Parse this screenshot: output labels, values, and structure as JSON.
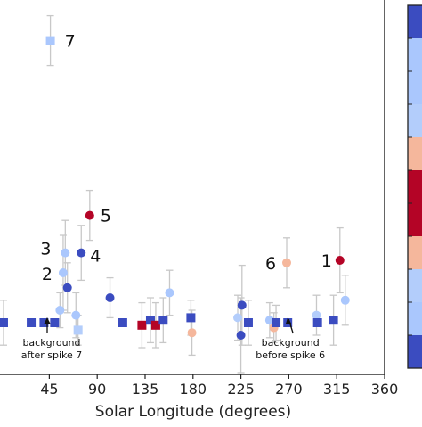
{
  "chart_data": {
    "type": "scatter",
    "xlabel": "Solar Longitude (degrees)",
    "xlim": [
      -3,
      360
    ],
    "ylim": [
      0,
      14
    ],
    "x_ticks": [
      45,
      90,
      135,
      180,
      225,
      270,
      315,
      360
    ],
    "grid": false,
    "colors": {
      "very_dark_blue": "#3b4cc0",
      "dark_blue": "#3d50c3",
      "mid_blue": "#7396f5",
      "light_blue": "#aac7fd",
      "pale_blue": "#b3cdfb",
      "peach": "#f5b79c",
      "dark_red": "#b40426",
      "error_bar": "#c8c8c8"
    },
    "colorbar_segments": [
      "#3b4cc0",
      "#aac7fd",
      "#aac7fd",
      "#b3cdfb",
      "#f5b79c",
      "#b40426",
      "#b40426",
      "#f5b79c",
      "#b3cdfb",
      "#aac7fd",
      "#3b4cc0"
    ],
    "points": [
      {
        "x": 2,
        "y": 1.0,
        "err": 0.9,
        "marker": "square",
        "color": "#3b4cc0"
      },
      {
        "x": 28,
        "y": 1.0,
        "err": 0.0,
        "marker": "square",
        "color": "#3b4cc0"
      },
      {
        "x": 40,
        "y": 1.0,
        "err": 0.0,
        "marker": "square",
        "color": "#3b4cc0"
      },
      {
        "x": 46,
        "y": 12.3,
        "err": 1.0,
        "marker": "square",
        "color": "#aac7fd",
        "label": "7"
      },
      {
        "x": 50,
        "y": 1.0,
        "err": 0.0,
        "marker": "square",
        "color": "#3b4cc0"
      },
      {
        "x": 55,
        "y": 1.5,
        "err": 0.7,
        "marker": "circle",
        "color": "#aac7fd"
      },
      {
        "x": 58,
        "y": 3.0,
        "err": 1.5,
        "marker": "circle",
        "color": "#aac7fd",
        "label": "2"
      },
      {
        "x": 60,
        "y": 3.8,
        "err": 1.3,
        "marker": "circle",
        "color": "#aac7fd",
        "label": "3"
      },
      {
        "x": 62,
        "y": 2.4,
        "err": 1.0,
        "marker": "circle",
        "color": "#3b4cc0"
      },
      {
        "x": 70,
        "y": 1.3,
        "err": 0.9,
        "marker": "circle",
        "color": "#aac7fd"
      },
      {
        "x": 72,
        "y": 0.7,
        "err": 0.6,
        "marker": "square",
        "color": "#b3cdfb"
      },
      {
        "x": 75,
        "y": 3.8,
        "err": 1.1,
        "marker": "circle",
        "color": "#3b4cc0",
        "label": "4"
      },
      {
        "x": 83,
        "y": 5.3,
        "err": 1.0,
        "marker": "circle",
        "color": "#b40426",
        "label": "5"
      },
      {
        "x": 102,
        "y": 2.0,
        "err": 0.8,
        "marker": "circle",
        "color": "#3b4cc0"
      },
      {
        "x": 114,
        "y": 1.0,
        "err": 0.0,
        "marker": "square",
        "color": "#3b4cc0"
      },
      {
        "x": 132,
        "y": 0.9,
        "err": 0.9,
        "marker": "square",
        "color": "#b40426"
      },
      {
        "x": 140,
        "y": 1.1,
        "err": 0.9,
        "marker": "square",
        "color": "#3b4cc0"
      },
      {
        "x": 145,
        "y": 0.9,
        "err": 0.9,
        "marker": "square",
        "color": "#b40426"
      },
      {
        "x": 152,
        "y": 1.1,
        "err": 0.9,
        "marker": "square",
        "color": "#3b4cc0"
      },
      {
        "x": 158,
        "y": 2.2,
        "err": 0.9,
        "marker": "circle",
        "color": "#aac7fd"
      },
      {
        "x": 178,
        "y": 1.2,
        "err": 0.7,
        "marker": "square",
        "color": "#3b4cc0"
      },
      {
        "x": 179,
        "y": 0.6,
        "err": 0.9,
        "marker": "circle",
        "color": "#f5b79c"
      },
      {
        "x": 222,
        "y": 1.2,
        "err": 0.9,
        "marker": "circle",
        "color": "#b3cdfb"
      },
      {
        "x": 226,
        "y": 1.7,
        "err": 1.6,
        "marker": "circle",
        "color": "#3b4cc0"
      },
      {
        "x": 225,
        "y": 0.5,
        "err": 1.5,
        "marker": "circle",
        "color": "#3b4cc0"
      },
      {
        "x": 232,
        "y": 1.0,
        "err": 0.9,
        "marker": "square",
        "color": "#3b4cc0"
      },
      {
        "x": 252,
        "y": 1.1,
        "err": 0.7,
        "marker": "circle",
        "color": "#aac7fd"
      },
      {
        "x": 256,
        "y": 0.8,
        "err": 0.6,
        "marker": "circle",
        "color": "#f5b79c"
      },
      {
        "x": 258,
        "y": 1.0,
        "err": 0.7,
        "marker": "square",
        "color": "#3b4cc0"
      },
      {
        "x": 268,
        "y": 3.4,
        "err": 1.0,
        "marker": "circle",
        "color": "#f5b79c",
        "label": "6"
      },
      {
        "x": 269,
        "y": 1.0,
        "err": 0.0,
        "marker": "square",
        "color": "#3b4cc0"
      },
      {
        "x": 296,
        "y": 1.3,
        "err": 0.8,
        "marker": "circle",
        "color": "#b3cdfb"
      },
      {
        "x": 297,
        "y": 1.0,
        "err": 0.0,
        "marker": "square",
        "color": "#3b4cc0"
      },
      {
        "x": 312,
        "y": 1.1,
        "err": 1.0,
        "marker": "square",
        "color": "#3b4cc0"
      },
      {
        "x": 318,
        "y": 3.5,
        "err": 1.3,
        "marker": "circle",
        "color": "#b40426",
        "label": "1"
      },
      {
        "x": 323,
        "y": 1.9,
        "err": 1.0,
        "marker": "circle",
        "color": "#aac7fd"
      }
    ],
    "annotations": [
      {
        "lines": [
          "background",
          "after spike 7"
        ],
        "target_x": 43
      },
      {
        "lines": [
          "background",
          "before spike 6"
        ],
        "target_x": 269
      }
    ]
  }
}
